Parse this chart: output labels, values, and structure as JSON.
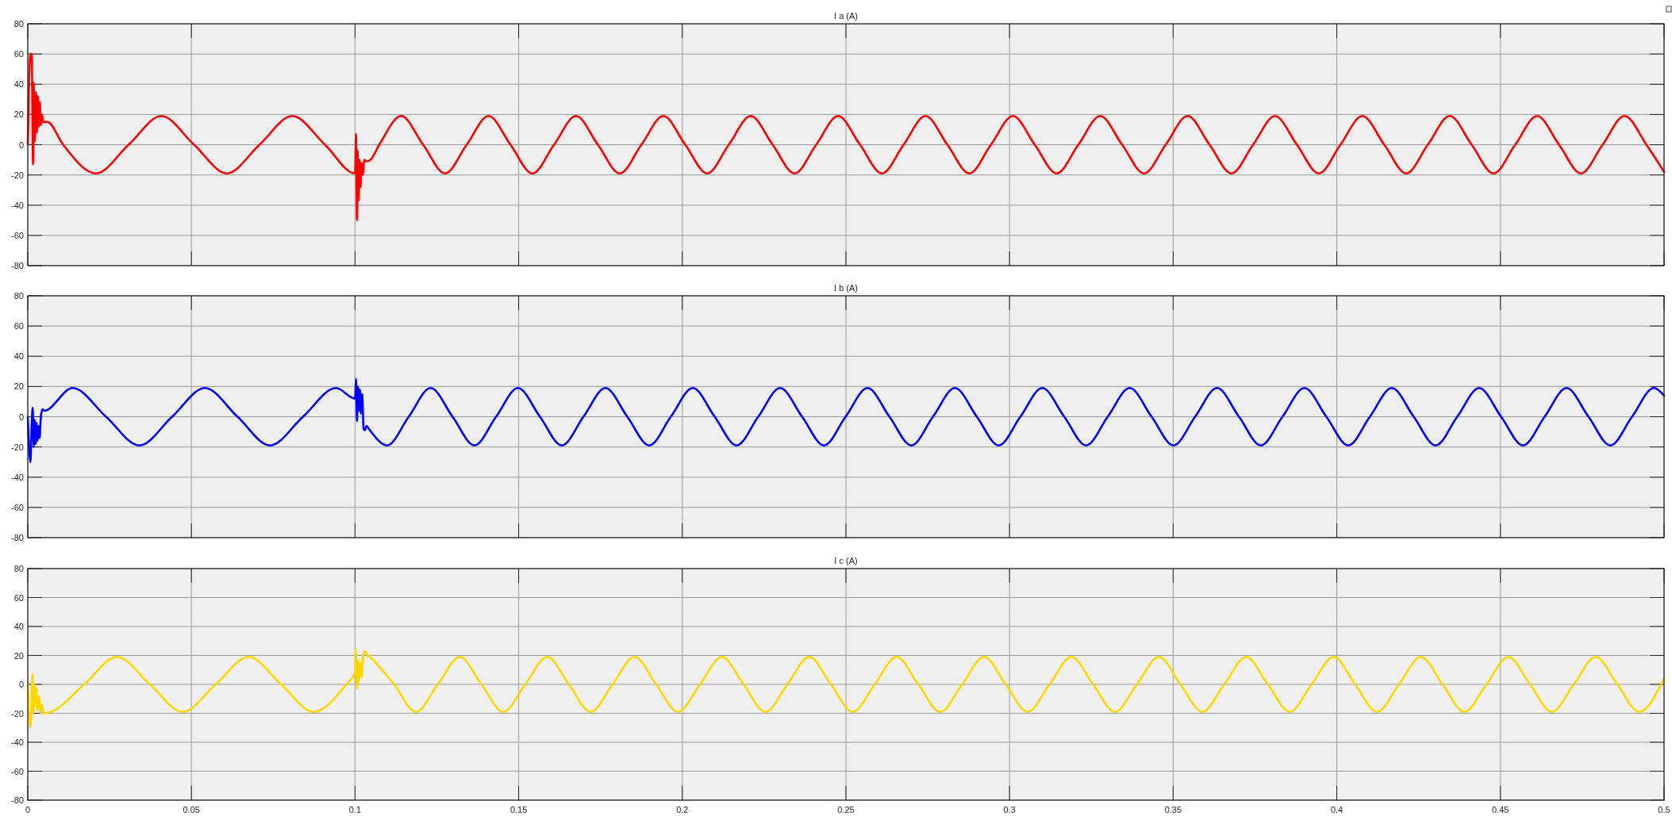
{
  "chart_data": [
    {
      "type": "line",
      "title": "I a (A)",
      "xlim": [
        0,
        0.5
      ],
      "ylim": [
        -80,
        80
      ],
      "xticks": [
        0,
        0.05,
        0.1,
        0.15,
        0.2,
        0.25,
        0.3,
        0.35,
        0.4,
        0.45,
        0.5
      ],
      "yticks": [
        -80,
        -60,
        -40,
        -20,
        0,
        20,
        40,
        60,
        80
      ],
      "grid": true,
      "tick_labels": "y",
      "series": [
        {
          "color": "#ff0000",
          "x": [
            0,
            0.0008,
            0.0012,
            0.0016,
            0.0018,
            0.0021,
            0.0025,
            0.0028,
            0.0031,
            0.0034,
            0.0037,
            0.004,
            0.0043,
            0.0047,
            0.006,
            0.0108,
            0.0208,
            0.0308,
            0.0408,
            0.0508,
            0.0608,
            0.0708,
            0.0808,
            0.0908,
            0.1,
            0.1003,
            0.1006,
            0.1008,
            0.1011,
            0.1014,
            0.1017,
            0.102,
            0.1024,
            0.1028,
            0.1035,
            0.1047,
            0.1074,
            0.1141,
            0.1208,
            0.1275,
            0.1341,
            0.1408,
            0.1475,
            0.1542,
            0.1608,
            0.1675,
            0.1742,
            0.1809,
            0.1875,
            0.1942,
            0.2009,
            0.2076,
            0.2142,
            0.2209,
            0.2276,
            0.2343,
            0.2409,
            0.2476,
            0.2543,
            0.261,
            0.2676,
            0.2743,
            0.281,
            0.2877,
            0.2943,
            0.301,
            0.3077,
            0.3144,
            0.321,
            0.3277,
            0.3344,
            0.3411,
            0.3477,
            0.3544,
            0.3611,
            0.3678,
            0.3744,
            0.3811,
            0.3878,
            0.3945,
            0.4011,
            0.4078,
            0.4145,
            0.4212,
            0.4278,
            0.4345,
            0.4412,
            0.4479,
            0.4545,
            0.4612,
            0.4679,
            0.4746,
            0.4812,
            0.4879,
            0.4946,
            0.5
          ],
          "values": [
            0,
            60,
            60,
            -13,
            41,
            2,
            35,
            8,
            32,
            12,
            28,
            13,
            20,
            15,
            15,
            0,
            -19,
            0,
            19,
            0,
            -19,
            0,
            19,
            0,
            -19,
            7,
            -50,
            -4,
            -37,
            -10,
            -28,
            -12,
            -20,
            -10,
            -11,
            -10,
            0,
            19,
            0,
            -19,
            0,
            19,
            0,
            -19,
            0,
            19,
            0,
            -19,
            0,
            19,
            0,
            -19,
            0,
            19,
            0,
            -19,
            0,
            19,
            0,
            -19,
            0,
            19,
            0,
            -19,
            0,
            19,
            0,
            -19,
            0,
            19,
            0,
            -19,
            0,
            19,
            0,
            -19,
            0,
            19,
            0,
            -19,
            0,
            19,
            0,
            -19,
            0,
            19,
            0,
            -19,
            0,
            19,
            0,
            -19,
            0,
            19,
            0,
            -18
          ]
        }
      ]
    },
    {
      "type": "line",
      "title": "I b (A)",
      "xlim": [
        0,
        0.5
      ],
      "ylim": [
        -80,
        80
      ],
      "xticks": [
        0,
        0.05,
        0.1,
        0.15,
        0.2,
        0.25,
        0.3,
        0.35,
        0.4,
        0.45,
        0.5
      ],
      "yticks": [
        -80,
        -60,
        -40,
        -20,
        0,
        20,
        40,
        60,
        80
      ],
      "grid": true,
      "tick_labels": "y",
      "series": [
        {
          "color": "#0000ff",
          "x": [
            0,
            0.0008,
            0.0012,
            0.0015,
            0.0018,
            0.0021,
            0.0024,
            0.0027,
            0.003,
            0.0033,
            0.0036,
            0.004,
            0.0045,
            0.005,
            0.0137,
            0.0239,
            0.0341,
            0.0441,
            0.0541,
            0.0641,
            0.074,
            0.0841,
            0.0942,
            0.1,
            0.1003,
            0.1006,
            0.1009,
            0.1012,
            0.1015,
            0.1018,
            0.1022,
            0.1026,
            0.103,
            0.1035,
            0.1042,
            0.1098,
            0.1164,
            0.1231,
            0.1298,
            0.1365,
            0.1431,
            0.1498,
            0.1565,
            0.1632,
            0.1698,
            0.1765,
            0.1832,
            0.1899,
            0.1965,
            0.2032,
            0.2099,
            0.2166,
            0.2232,
            0.2299,
            0.2366,
            0.2433,
            0.2499,
            0.2566,
            0.2633,
            0.27,
            0.2766,
            0.2833,
            0.29,
            0.2967,
            0.3033,
            0.31,
            0.3167,
            0.3234,
            0.33,
            0.3367,
            0.3434,
            0.3501,
            0.3567,
            0.3634,
            0.3701,
            0.3768,
            0.3834,
            0.3901,
            0.3968,
            0.4035,
            0.4101,
            0.4168,
            0.4235,
            0.4302,
            0.4368,
            0.4435,
            0.4502,
            0.4569,
            0.4635,
            0.4702,
            0.4769,
            0.4836,
            0.4902,
            0.4969,
            0.5
          ],
          "values": [
            0,
            -30,
            -5,
            6,
            -20,
            -2,
            -18,
            -4,
            -16,
            -6,
            -14,
            0,
            5,
            4,
            19,
            0,
            -19,
            0,
            19,
            0,
            -19,
            0,
            19,
            12,
            25,
            -3,
            20,
            4,
            18,
            2,
            15,
            -8,
            -9,
            -6,
            -8,
            -19,
            0,
            19,
            0,
            -19,
            0,
            19,
            0,
            -19,
            0,
            19,
            0,
            -19,
            0,
            19,
            0,
            -19,
            0,
            19,
            0,
            -19,
            0,
            19,
            0,
            -19,
            0,
            19,
            0,
            -19,
            0,
            19,
            0,
            -19,
            0,
            19,
            0,
            -19,
            0,
            19,
            0,
            -19,
            0,
            19,
            0,
            -19,
            0,
            19,
            0,
            -19,
            0,
            19,
            0,
            -19,
            0,
            19,
            0,
            -19,
            0,
            19,
            14
          ]
        }
      ]
    },
    {
      "type": "line",
      "title": "I c (A)",
      "xlim": [
        0,
        0.5
      ],
      "ylim": [
        -80,
        80
      ],
      "xticks": [
        0,
        0.05,
        0.1,
        0.15,
        0.2,
        0.25,
        0.3,
        0.35,
        0.4,
        0.45,
        0.5
      ],
      "yticks": [
        -80,
        -60,
        -40,
        -20,
        0,
        20,
        40,
        60,
        80
      ],
      "grid": true,
      "series": [
        {
          "color": "#ffd700",
          "x": [
            0,
            0.0008,
            0.0012,
            0.0014,
            0.0017,
            0.002,
            0.0023,
            0.0026,
            0.003,
            0.0034,
            0.0038,
            0.0043,
            0.0047,
            0.007,
            0.0172,
            0.0273,
            0.0373,
            0.0473,
            0.0574,
            0.0675,
            0.0774,
            0.0873,
            0.0973,
            0.1,
            0.1002,
            0.1006,
            0.1009,
            0.1012,
            0.1016,
            0.102,
            0.1025,
            0.103,
            0.1035,
            0.1045,
            0.1119,
            0.1186,
            0.1253,
            0.132,
            0.1386,
            0.1453,
            0.152,
            0.1587,
            0.1653,
            0.172,
            0.1787,
            0.1854,
            0.192,
            0.1987,
            0.2054,
            0.2121,
            0.2187,
            0.2254,
            0.2321,
            0.2388,
            0.2454,
            0.2521,
            0.2588,
            0.2655,
            0.2721,
            0.2788,
            0.2855,
            0.2922,
            0.2988,
            0.3055,
            0.3122,
            0.3189,
            0.3255,
            0.3322,
            0.3389,
            0.3456,
            0.3522,
            0.3589,
            0.3656,
            0.3723,
            0.3789,
            0.3856,
            0.3923,
            0.399,
            0.4056,
            0.4123,
            0.419,
            0.4257,
            0.4323,
            0.439,
            0.4457,
            0.4524,
            0.459,
            0.4657,
            0.4724,
            0.4791,
            0.4857,
            0.4924,
            0.5
          ],
          "values": [
            0,
            -30,
            -10,
            7,
            -20,
            0,
            -15,
            -3,
            -18,
            -8,
            -20,
            -14,
            -20,
            -19,
            0,
            19,
            0,
            -19,
            0,
            19,
            0,
            -19,
            0,
            8,
            24,
            -3,
            17,
            2,
            15,
            5,
            20,
            23,
            21,
            19,
            0,
            -19,
            0,
            19,
            0,
            -19,
            0,
            19,
            0,
            -19,
            0,
            19,
            0,
            -19,
            0,
            19,
            0,
            -19,
            0,
            19,
            0,
            -19,
            0,
            19,
            0,
            -19,
            0,
            19,
            0,
            -19,
            0,
            19,
            0,
            -19,
            0,
            19,
            0,
            -19,
            0,
            19,
            0,
            -19,
            0,
            19,
            0,
            -19,
            0,
            19,
            0,
            -19,
            0,
            19,
            0,
            -19,
            0,
            19,
            0,
            -19,
            4
          ]
        }
      ]
    }
  ]
}
